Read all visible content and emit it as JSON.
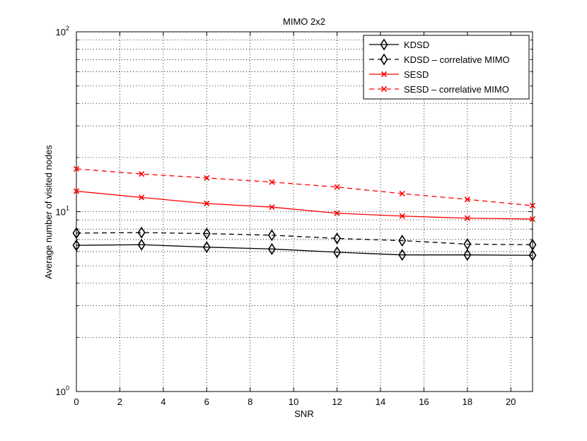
{
  "chart_data": {
    "type": "line",
    "title": "MIMO 2x2",
    "xlabel": "SNR",
    "ylabel": "Average number of visited nodes",
    "x": [
      0,
      3,
      6,
      9,
      12,
      15,
      18,
      21
    ],
    "xlim": [
      0,
      21
    ],
    "xticks": [
      "0",
      "2",
      "4",
      "6",
      "8",
      "10",
      "12",
      "14",
      "16",
      "18",
      "20"
    ],
    "yscale": "log",
    "ylim": [
      1,
      100
    ],
    "yticks": [
      {
        "base": "10",
        "exp": "0"
      },
      {
        "base": "10",
        "exp": "1"
      },
      {
        "base": "10",
        "exp": "2"
      }
    ],
    "grid": true,
    "legend_position": "top-right",
    "series": [
      {
        "name": "KDSD",
        "color": "#000000",
        "dash": "solid",
        "marker": "diamond",
        "values": [
          6.5,
          6.55,
          6.35,
          6.2,
          5.95,
          5.75,
          5.75,
          5.72
        ]
      },
      {
        "name": "KDSD – correlative MIMO",
        "color": "#000000",
        "dash": "dashed",
        "marker": "diamond",
        "values": [
          7.6,
          7.65,
          7.55,
          7.4,
          7.1,
          6.9,
          6.6,
          6.55
        ]
      },
      {
        "name": "SESD",
        "color": "#ff0000",
        "dash": "solid",
        "marker": "x",
        "values": [
          13.0,
          12.0,
          11.1,
          10.6,
          9.8,
          9.45,
          9.2,
          9.1
        ]
      },
      {
        "name": "SESD – correlative MIMO",
        "color": "#ff0000",
        "dash": "dashed",
        "marker": "x",
        "values": [
          17.3,
          16.2,
          15.4,
          14.6,
          13.7,
          12.6,
          11.7,
          10.8
        ]
      }
    ]
  }
}
